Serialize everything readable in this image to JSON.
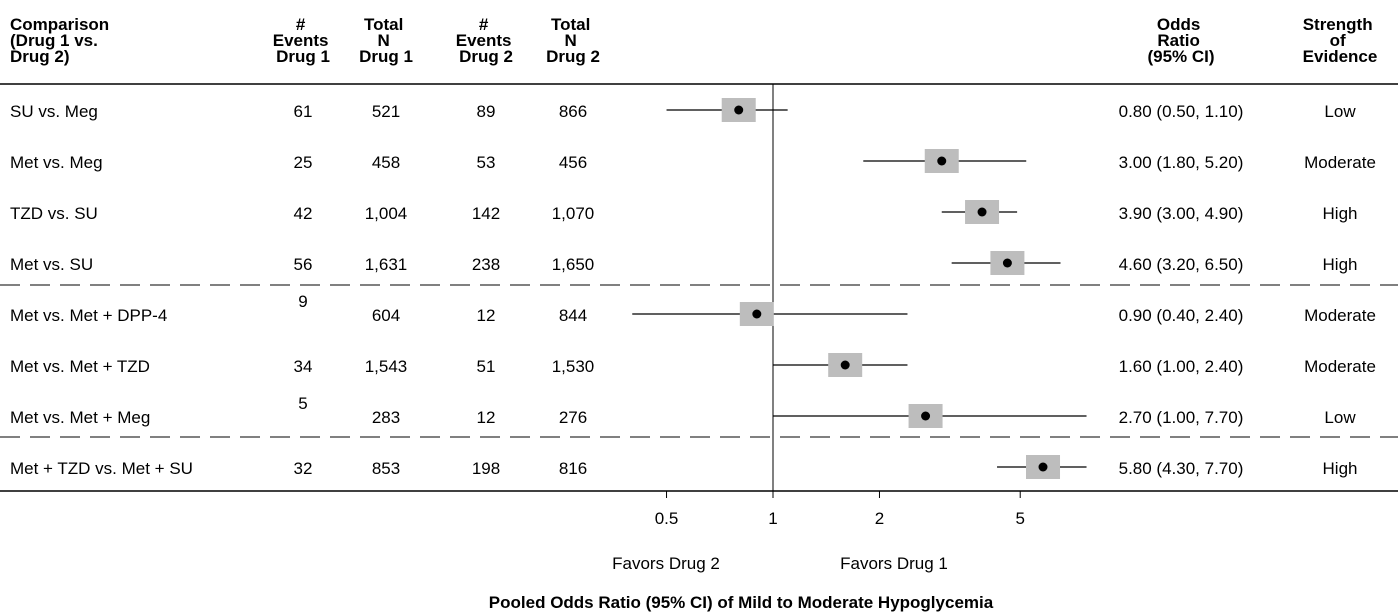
{
  "headers": {
    "comparison": [
      "Comparison",
      "(Drug 1 vs.",
      "Drug 2)"
    ],
    "events1": [
      "#",
      "Events",
      "Drug 1"
    ],
    "total1": [
      "Total",
      "N",
      "Drug 1"
    ],
    "events2": [
      "#",
      "Events",
      "Drug 2"
    ],
    "total2": [
      "Total",
      "N",
      "Drug 2"
    ],
    "or": [
      "Odds",
      "Ratio",
      "(95% CI)"
    ],
    "strength": [
      "Strength",
      "of",
      "Evidence"
    ]
  },
  "rows": [
    {
      "comparison": "SU vs. Meg",
      "events1": "61",
      "total1": "521",
      "events2": "89",
      "total2": "866",
      "or_text": "0.80  (0.50, 1.10)",
      "strength": "Low"
    },
    {
      "comparison": "Met vs. Meg",
      "events1": "25",
      "total1": "458",
      "events2": "53",
      "total2": "456",
      "or_text": "3.00 (1.80, 5.20)",
      "strength": "Moderate"
    },
    {
      "comparison": "TZD vs. SU",
      "events1": "42",
      "total1": "1,004",
      "events2": "142",
      "total2": "1,070",
      "or_text": "3.90 (3.00, 4.90)",
      "strength": "High"
    },
    {
      "comparison": "Met vs. SU",
      "events1": "56",
      "total1": "1,631",
      "events2": "238",
      "total2": "1,650",
      "or_text": "4.60 (3.20, 6.50)",
      "strength": "High"
    },
    {
      "comparison": "Met vs. Met + DPP-4",
      "events1": "9",
      "total1": "604",
      "events2": "12",
      "total2": "844",
      "or_text": "0.90 (0.40, 2.40)",
      "strength": "Moderate"
    },
    {
      "comparison": "Met vs. Met + TZD",
      "events1": "34",
      "total1": "1,543",
      "events2": "51",
      "total2": "1,530",
      "or_text": "1.60 (1.00, 2.40)",
      "strength": "Moderate"
    },
    {
      "comparison": "Met vs. Met + Meg",
      "events1": "5",
      "total1": "283",
      "events2": "12",
      "total2": "276",
      "or_text": "2.70  (1.00, 7.70)",
      "strength": "Low"
    },
    {
      "comparison": "Met + TZD vs. Met + SU",
      "events1": "32",
      "total1": "853",
      "events2": "198",
      "total2": "816",
      "or_text": "5.80 (4.30, 7.70)",
      "strength": "High"
    }
  ],
  "favors_left": "Favors Drug 2",
  "favors_right": "Favors Drug 1",
  "chart_data": {
    "type": "scatter",
    "subtype": "forest-plot",
    "xscale": "log",
    "xlim": [
      0.4,
      10
    ],
    "reference_line": 1,
    "xticks": [
      0.5,
      1,
      2,
      5
    ],
    "xtick_labels": [
      "0.5",
      "1",
      "2",
      "5"
    ],
    "xlabel": "Pooled Odds Ratio (95% CI) of Mild to Moderate Hypoglycemia",
    "categories": [
      "SU vs. Meg",
      "Met vs. Meg",
      "TZD vs. SU",
      "Met vs. SU",
      "Met vs. Met + DPP-4",
      "Met vs. Met + TZD",
      "Met vs. Met + Meg",
      "Met + TZD vs. Met + SU"
    ],
    "or": [
      0.8,
      3.0,
      3.9,
      4.6,
      0.9,
      1.6,
      2.7,
      5.8
    ],
    "ci_low": [
      0.5,
      1.8,
      3.0,
      3.2,
      0.4,
      1.0,
      1.0,
      4.3
    ],
    "ci_high": [
      1.1,
      5.2,
      4.9,
      6.5,
      2.4,
      2.4,
      7.7,
      7.7
    ],
    "group_breaks_after": [
      3,
      6
    ],
    "colors": {
      "box": "#bdbdbd",
      "point": "#000000",
      "line": "#000000"
    }
  }
}
